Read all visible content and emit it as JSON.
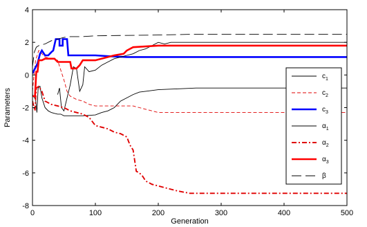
{
  "chart_data": {
    "type": "line",
    "title": "",
    "xlabel": "Generation",
    "ylabel": "Parameters",
    "xlim": [
      0,
      500
    ],
    "ylim": [
      -8,
      4
    ],
    "xticks": [
      "0",
      "100",
      "200",
      "300",
      "400",
      "500"
    ],
    "yticks": [
      "4",
      "2",
      "0",
      "-2",
      "-4",
      "-6",
      "-8"
    ],
    "grid": false,
    "legend_position": "right",
    "series": [
      {
        "base": "c",
        "sub": "1",
        "color": "#000000",
        "style": "solid",
        "width": 0.9,
        "points": [
          [
            0,
            -1.2
          ],
          [
            5,
            -1.5
          ],
          [
            7,
            -2.3
          ],
          [
            9,
            -0.8
          ],
          [
            12,
            -0.7
          ],
          [
            15,
            -1.4
          ],
          [
            20,
            -2.0
          ],
          [
            25,
            -2.2
          ],
          [
            30,
            -2.3
          ],
          [
            35,
            -2.35
          ],
          [
            40,
            -2.4
          ],
          [
            45,
            -2.4
          ],
          [
            50,
            -2.5
          ],
          [
            80,
            -2.5
          ],
          [
            100,
            -2.45
          ],
          [
            110,
            -2.3
          ],
          [
            120,
            -2.2
          ],
          [
            130,
            -2.0
          ],
          [
            140,
            -1.6
          ],
          [
            150,
            -1.4
          ],
          [
            160,
            -1.2
          ],
          [
            170,
            -1.05
          ],
          [
            180,
            -1.0
          ],
          [
            200,
            -0.9
          ],
          [
            230,
            -0.85
          ],
          [
            260,
            -0.8
          ],
          [
            500,
            -0.8
          ]
        ]
      },
      {
        "base": "c",
        "sub": "2",
        "color": "#e00000",
        "style": "dashed",
        "width": 0.9,
        "points": [
          [
            0,
            -1.0
          ],
          [
            3,
            0.2
          ],
          [
            5,
            0.9
          ],
          [
            10,
            1.5
          ],
          [
            20,
            1.1
          ],
          [
            30,
            1.0
          ],
          [
            40,
            0.9
          ],
          [
            45,
            0.3
          ],
          [
            50,
            -0.3
          ],
          [
            55,
            -1.0
          ],
          [
            60,
            -1.3
          ],
          [
            70,
            -1.5
          ],
          [
            80,
            -1.6
          ],
          [
            90,
            -1.8
          ],
          [
            100,
            -1.9
          ],
          [
            150,
            -1.9
          ],
          [
            160,
            -1.9
          ],
          [
            170,
            -2.0
          ],
          [
            180,
            -2.1
          ],
          [
            190,
            -2.2
          ],
          [
            200,
            -2.3
          ],
          [
            500,
            -2.3
          ]
        ]
      },
      {
        "base": "c",
        "sub": "3",
        "color": "#0000ff",
        "style": "solid",
        "width": 2.6,
        "points": [
          [
            0,
            0.1
          ],
          [
            8,
            0.7
          ],
          [
            12,
            1.3
          ],
          [
            15,
            1.5
          ],
          [
            20,
            1.2
          ],
          [
            25,
            1.2
          ],
          [
            30,
            1.4
          ],
          [
            33,
            1.5
          ],
          [
            37,
            2.2
          ],
          [
            43,
            2.2
          ],
          [
            43,
            1.8
          ],
          [
            48,
            1.8
          ],
          [
            48,
            2.2
          ],
          [
            55,
            2.2
          ],
          [
            57,
            1.2
          ],
          [
            100,
            1.2
          ],
          [
            120,
            1.15
          ],
          [
            150,
            1.1
          ],
          [
            200,
            1.1
          ],
          [
            500,
            1.1
          ]
        ]
      },
      {
        "base": "α",
        "sub": "1",
        "color": "#000000",
        "style": "solid",
        "width": 0.9,
        "points": [
          [
            40,
            -1.2
          ],
          [
            43,
            -0.8
          ],
          [
            46,
            -2.0
          ],
          [
            50,
            -2.2
          ],
          [
            60,
            -0.6
          ],
          [
            65,
            0.5
          ],
          [
            70,
            0.4
          ],
          [
            75,
            -1.0
          ],
          [
            80,
            -0.6
          ],
          [
            83,
            0.5
          ],
          [
            90,
            0.2
          ],
          [
            100,
            0.3
          ],
          [
            110,
            0.6
          ],
          [
            120,
            0.8
          ],
          [
            130,
            1.0
          ],
          [
            140,
            1.1
          ],
          [
            150,
            1.2
          ],
          [
            160,
            1.3
          ],
          [
            170,
            1.5
          ],
          [
            180,
            1.6
          ],
          [
            190,
            1.8
          ],
          [
            200,
            2.0
          ],
          [
            210,
            1.9
          ],
          [
            220,
            2.0
          ],
          [
            240,
            2.0
          ],
          [
            260,
            2.0
          ],
          [
            300,
            2.0
          ],
          [
            360,
            2.0
          ],
          [
            420,
            2.0
          ],
          [
            500,
            2.0
          ]
        ]
      },
      {
        "base": "α",
        "sub": "2",
        "color": "#e00000",
        "style": "dashdot",
        "width": 1.9,
        "points": [
          [
            0,
            -1.6
          ],
          [
            4,
            -2.2
          ],
          [
            6,
            -0.8
          ],
          [
            10,
            -0.7
          ],
          [
            15,
            -1.0
          ],
          [
            20,
            -1.6
          ],
          [
            30,
            -1.8
          ],
          [
            40,
            -1.9
          ],
          [
            50,
            -2.0
          ],
          [
            60,
            -2.2
          ],
          [
            70,
            -2.3
          ],
          [
            80,
            -2.4
          ],
          [
            90,
            -2.6
          ],
          [
            100,
            -3.1
          ],
          [
            110,
            -3.2
          ],
          [
            120,
            -3.3
          ],
          [
            130,
            -3.5
          ],
          [
            140,
            -3.6
          ],
          [
            150,
            -3.8
          ],
          [
            155,
            -4.3
          ],
          [
            160,
            -4.6
          ],
          [
            165,
            -5.9
          ],
          [
            170,
            -6.0
          ],
          [
            175,
            -6.2
          ],
          [
            180,
            -6.5
          ],
          [
            190,
            -6.7
          ],
          [
            210,
            -6.9
          ],
          [
            230,
            -7.1
          ],
          [
            250,
            -7.25
          ],
          [
            500,
            -7.25
          ]
        ]
      },
      {
        "base": "α",
        "sub": "3",
        "color": "#ff0000",
        "style": "solid",
        "width": 2.6,
        "points": [
          [
            0,
            -1.3
          ],
          [
            4,
            -1.3
          ],
          [
            6,
            0.2
          ],
          [
            8,
            0.2
          ],
          [
            10,
            0.9
          ],
          [
            15,
            0.9
          ],
          [
            20,
            1.0
          ],
          [
            35,
            1.0
          ],
          [
            40,
            0.8
          ],
          [
            60,
            0.8
          ],
          [
            62,
            0.4
          ],
          [
            70,
            0.4
          ],
          [
            75,
            0.6
          ],
          [
            80,
            0.9
          ],
          [
            100,
            0.9
          ],
          [
            110,
            1.0
          ],
          [
            120,
            1.1
          ],
          [
            130,
            1.2
          ],
          [
            145,
            1.3
          ],
          [
            150,
            1.5
          ],
          [
            160,
            1.7
          ],
          [
            180,
            1.75
          ],
          [
            200,
            1.8
          ],
          [
            500,
            1.8
          ]
        ]
      },
      {
        "base": "β",
        "sub": "",
        "color": "#000000",
        "style": "longdash",
        "width": 0.9,
        "points": [
          [
            0,
            0.5
          ],
          [
            3,
            1.4
          ],
          [
            6,
            1.7
          ],
          [
            10,
            1.8
          ],
          [
            20,
            1.9
          ],
          [
            30,
            2.1
          ],
          [
            40,
            2.2
          ],
          [
            50,
            2.3
          ],
          [
            60,
            2.35
          ],
          [
            80,
            2.35
          ],
          [
            100,
            2.4
          ],
          [
            200,
            2.45
          ],
          [
            260,
            2.5
          ],
          [
            500,
            2.5
          ]
        ]
      }
    ]
  }
}
